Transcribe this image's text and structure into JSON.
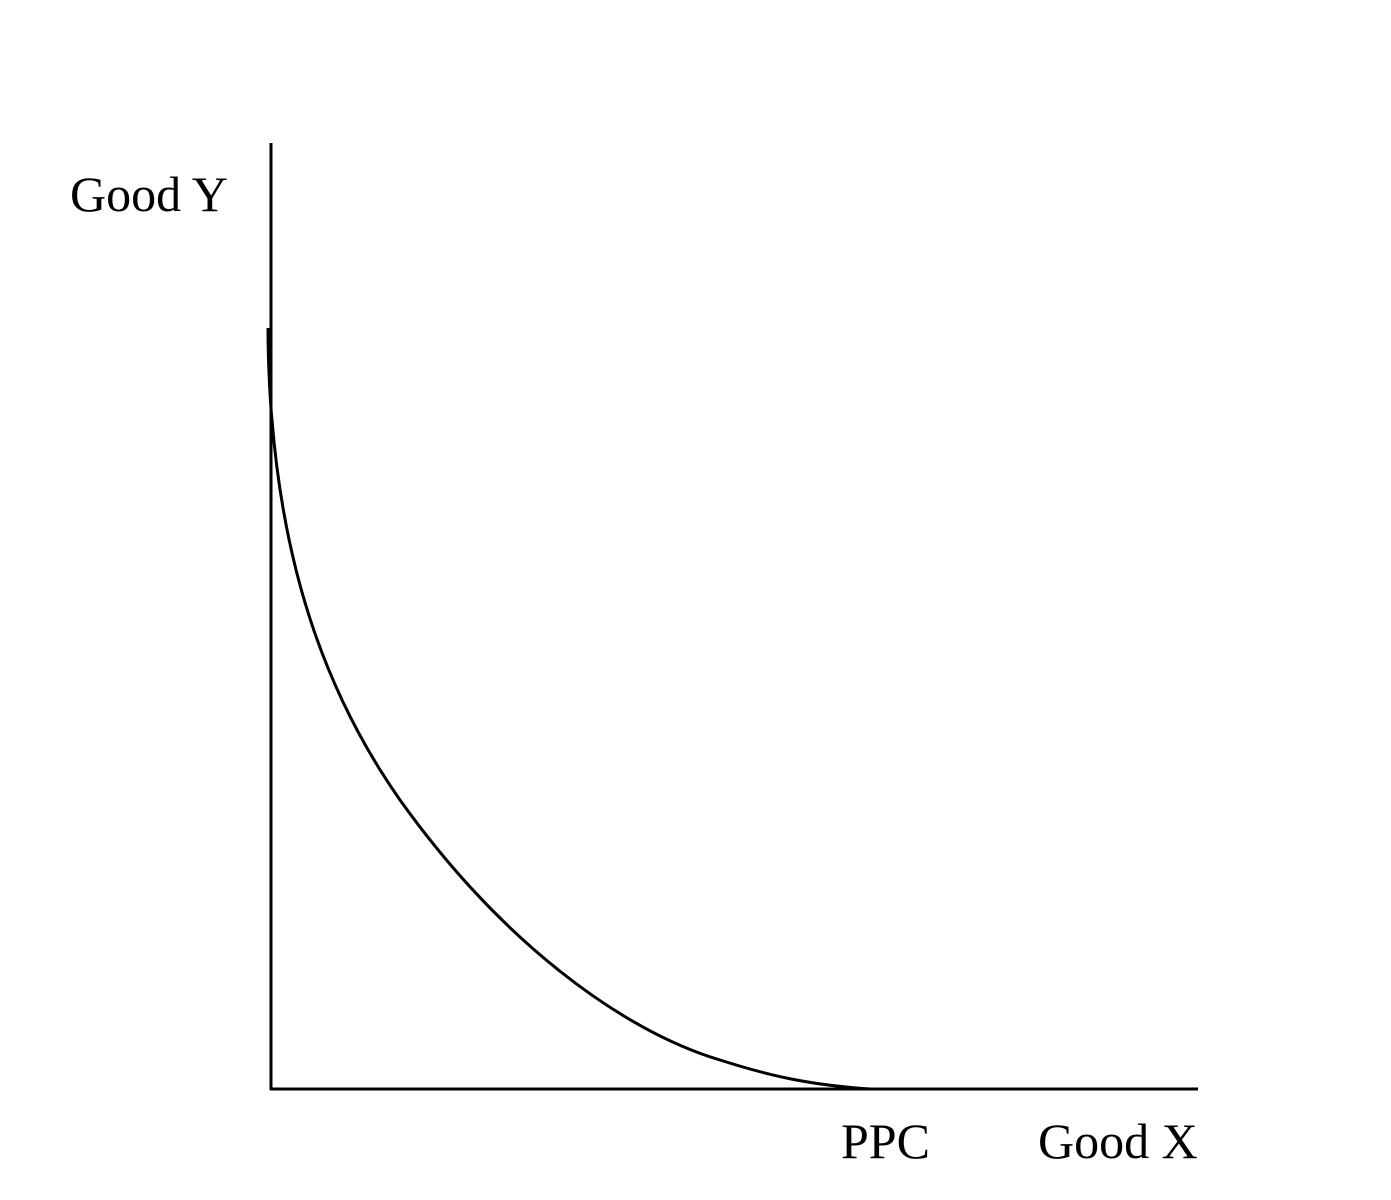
{
  "diagram": {
    "y_axis_label": "Good Y",
    "x_axis_label": "Good X",
    "curve_label": "PPC"
  },
  "colors": {
    "background": "#ffffff",
    "ink": "#000000"
  }
}
